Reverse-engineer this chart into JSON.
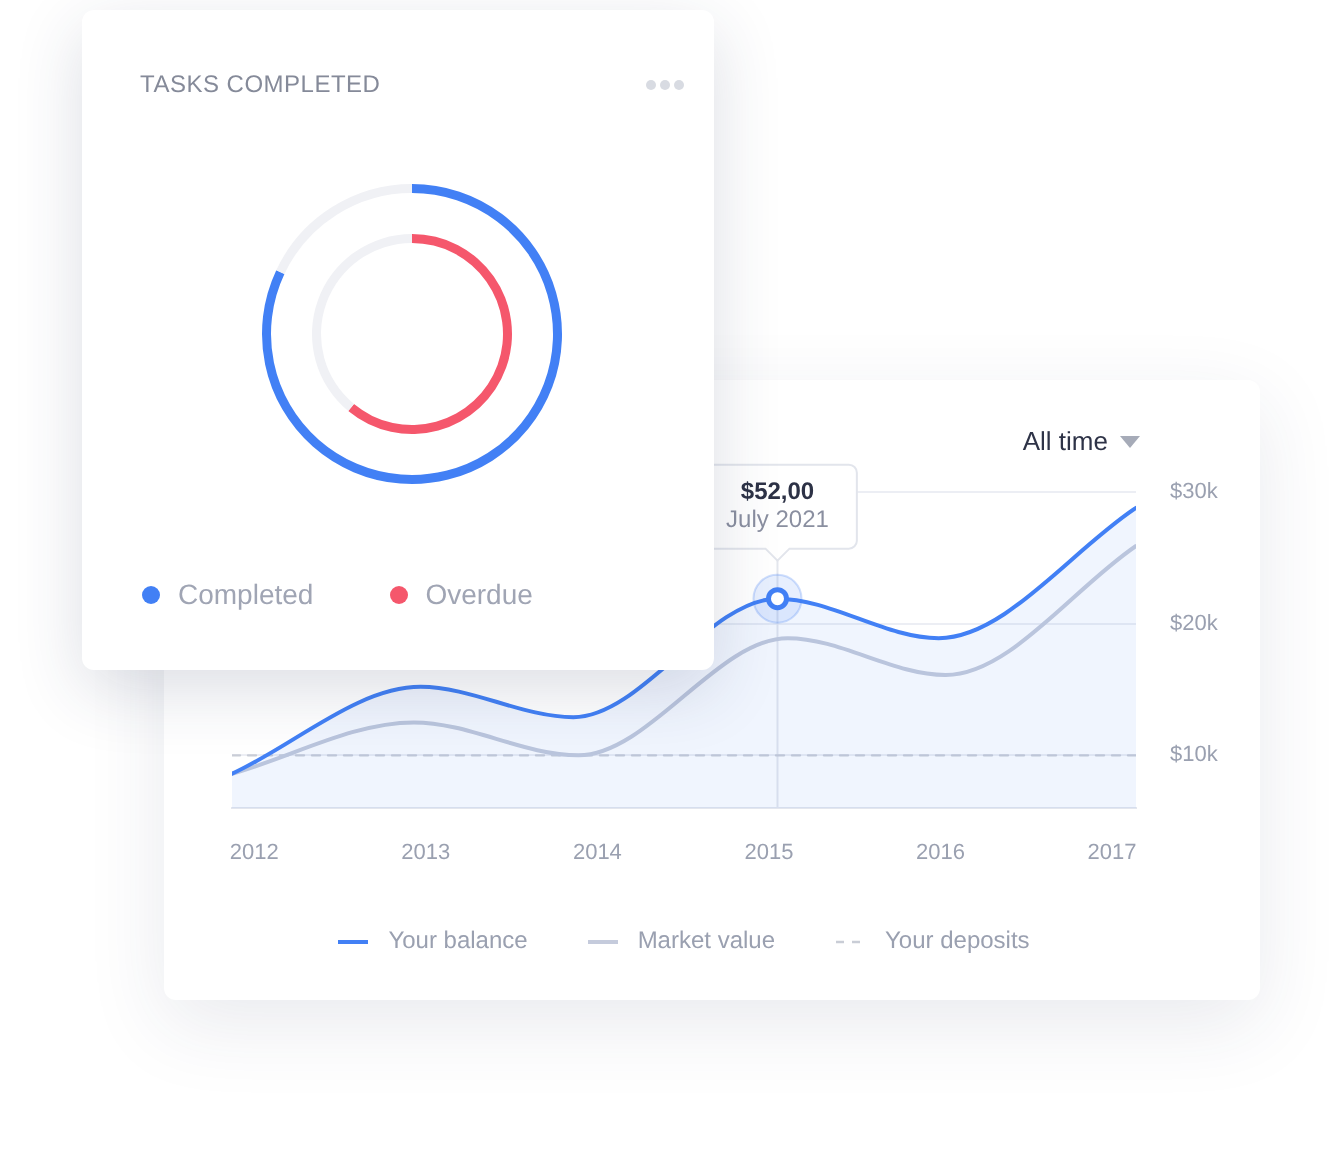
{
  "chart_data": [
    {
      "type": "donut",
      "title": "TASKS COMPLETED",
      "categories": [
        null,
        null
      ],
      "series": [
        {
          "name": "Completed",
          "color": "#4280f5",
          "colors": [
            "#4280f5",
            "#f0f1f5"
          ],
          "values": [
            82,
            18
          ]
        },
        {
          "name": "Overdue",
          "color": "#f5576c",
          "colors": [
            "#f5576c",
            "#f0f1f5"
          ],
          "values": [
            61,
            39
          ]
        }
      ],
      "legend": "bottom left"
    },
    {
      "type": "line",
      "xlim": [
        2011.87,
        2017.14
      ],
      "xticks": [
        2012,
        2013,
        2014,
        2015,
        2016,
        2017
      ],
      "ylim": [
        6,
        30
      ],
      "yticks": [
        {
          "value": 10,
          "label": "$10k"
        },
        {
          "value": 20,
          "label": "$20k"
        },
        {
          "value": 30,
          "label": "$30k"
        }
      ],
      "grid": "y",
      "legend": "bottom",
      "marker": "none",
      "series": [
        {
          "name": "Your balance",
          "type": "area",
          "color": "#4280f5",
          "x": [
            2011.87,
            2012.97,
            2013.86,
            2015.05,
            2015.99,
            2017.14
          ],
          "values": [
            8.6,
            15.2,
            12.9,
            21.9,
            18.9,
            28.8
          ]
        },
        {
          "name": "Market value",
          "type": "line",
          "color": "#c5cbdc",
          "x": [
            2011.87,
            2012.93,
            2013.89,
            2015.11,
            2016.03,
            2017.14
          ],
          "values": [
            8.6,
            12.5,
            10.0,
            18.9,
            16.1,
            25.9
          ]
        },
        {
          "name": "Your deposits",
          "type": "line",
          "line_style": "dashed",
          "color": "#c9cdd6",
          "x": [
            2011.87,
            2017.14
          ],
          "values": [
            10,
            10
          ]
        }
      ],
      "ref_lines": [
        {
          "axis": "x",
          "value": 2015.05,
          "color": "#e4e7ee"
        }
      ],
      "annotations": [
        "All time",
        {
          "text": "$52,00\nJuly 2021",
          "x": 2015.05,
          "y": 21.9
        }
      ]
    }
  ]
}
